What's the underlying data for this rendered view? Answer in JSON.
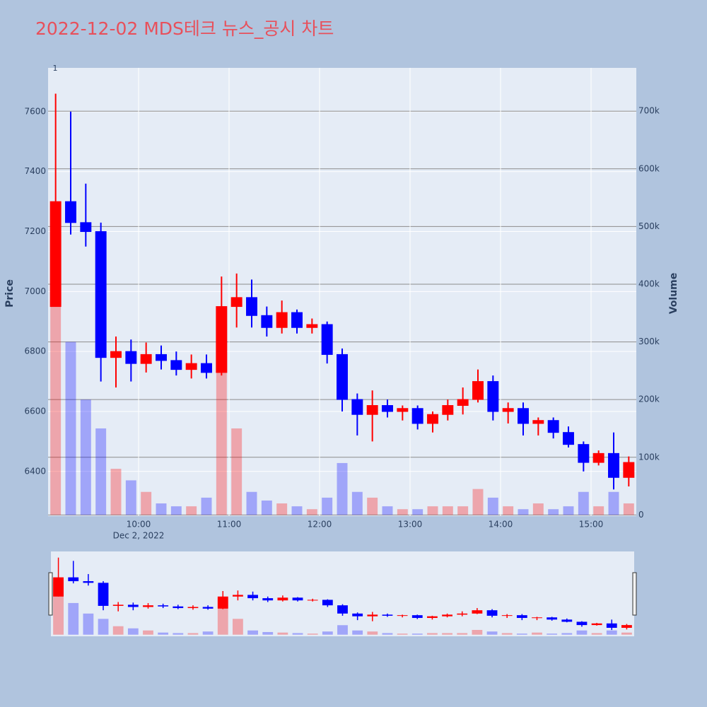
{
  "chart_data": {
    "type": "candlestick",
    "title": "2022-12-02 MDS테크 뉴스_공시 차트",
    "ylabel": "Price",
    "y2label": "Volume",
    "annotation": "1",
    "x_date_label": "Dec 2, 2022",
    "x": [
      "2022-12-02 09:05",
      "2022-12-02 09:15",
      "2022-12-02 09:25",
      "2022-12-02 09:35",
      "2022-12-02 09:45",
      "2022-12-02 09:55",
      "2022-12-02 10:05",
      "2022-12-02 10:15",
      "2022-12-02 10:25",
      "2022-12-02 10:35",
      "2022-12-02 10:45",
      "2022-12-02 10:55",
      "2022-12-02 11:05",
      "2022-12-02 11:15",
      "2022-12-02 11:25",
      "2022-12-02 11:35",
      "2022-12-02 11:45",
      "2022-12-02 11:55",
      "2022-12-02 12:05",
      "2022-12-02 12:15",
      "2022-12-02 12:25",
      "2022-12-02 12:35",
      "2022-12-02 12:45",
      "2022-12-02 12:55",
      "2022-12-02 13:05",
      "2022-12-02 13:15",
      "2022-12-02 13:25",
      "2022-12-02 13:35",
      "2022-12-02 13:45",
      "2022-12-02 13:55",
      "2022-12-02 14:05",
      "2022-12-02 14:15",
      "2022-12-02 14:25",
      "2022-12-02 14:35",
      "2022-12-02 14:45",
      "2022-12-02 14:55",
      "2022-12-02 15:05",
      "2022-12-02 15:15",
      "2022-12-02 15:25"
    ],
    "open": [
      6950,
      7300,
      7230,
      7200,
      6780,
      6800,
      6760,
      6790,
      6770,
      6740,
      6760,
      6730,
      6950,
      6980,
      6920,
      6880,
      6930,
      6880,
      6890,
      6790,
      6640,
      6590,
      6620,
      6600,
      6610,
      6560,
      6590,
      6620,
      6640,
      6700,
      6600,
      6610,
      6560,
      6570,
      6530,
      6490,
      6430,
      6460,
      6380
    ],
    "high": [
      7660,
      7600,
      7360,
      7230,
      6850,
      6840,
      6830,
      6820,
      6800,
      6790,
      6790,
      7050,
      7060,
      7040,
      6950,
      6970,
      6940,
      6910,
      6900,
      6810,
      6660,
      6670,
      6640,
      6620,
      6620,
      6600,
      6640,
      6680,
      6740,
      6720,
      6630,
      6630,
      6580,
      6580,
      6550,
      6500,
      6470,
      6530,
      6450
    ],
    "low": [
      6950,
      7190,
      7150,
      6700,
      6680,
      6700,
      6730,
      6740,
      6720,
      6710,
      6710,
      6720,
      6880,
      6880,
      6850,
      6860,
      6860,
      6860,
      6760,
      6600,
      6520,
      6500,
      6580,
      6570,
      6540,
      6530,
      6570,
      6590,
      6630,
      6570,
      6560,
      6520,
      6520,
      6510,
      6480,
      6400,
      6420,
      6340,
      6350
    ],
    "close": [
      7300,
      7230,
      7200,
      6780,
      6800,
      6760,
      6790,
      6770,
      6740,
      6760,
      6730,
      6950,
      6980,
      6920,
      6880,
      6930,
      6880,
      6890,
      6790,
      6640,
      6590,
      6620,
      6600,
      6610,
      6560,
      6590,
      6620,
      6640,
      6700,
      6600,
      6610,
      6560,
      6570,
      6530,
      6490,
      6430,
      6460,
      6380,
      6430
    ],
    "volume": [
      500000,
      300000,
      200000,
      150000,
      80000,
      60000,
      40000,
      20000,
      15000,
      15000,
      30000,
      350000,
      150000,
      40000,
      25000,
      20000,
      15000,
      10000,
      30000,
      90000,
      40000,
      30000,
      15000,
      10000,
      10000,
      15000,
      15000,
      15000,
      45000,
      30000,
      15000,
      10000,
      20000,
      10000,
      15000,
      40000,
      15000,
      40000,
      20000
    ],
    "increasing_color": "#ff0000",
    "decreasing_color": "#0000ff",
    "xlim": [
      "2022-12-02 09:00",
      "2022-12-02 15:30"
    ],
    "xticks": [
      {
        "value": "2022-12-02 10:00",
        "label": "10:00"
      },
      {
        "value": "2022-12-02 11:00",
        "label": "11:00"
      },
      {
        "value": "2022-12-02 12:00",
        "label": "12:00"
      },
      {
        "value": "2022-12-02 13:00",
        "label": "13:00"
      },
      {
        "value": "2022-12-02 14:00",
        "label": "14:00"
      },
      {
        "value": "2022-12-02 15:00",
        "label": "15:00"
      }
    ],
    "ylim": [
      6251,
      7746
    ],
    "yticks": [
      6400,
      6600,
      6800,
      7000,
      7200,
      7400,
      7600
    ],
    "y2lim": [
      -2000,
      775000
    ],
    "y2ticks": [
      0,
      {
        "value": 100000,
        "label": "100k"
      },
      {
        "value": 200000,
        "label": "200k"
      },
      {
        "value": 300000,
        "label": "300k"
      },
      {
        "value": 400000,
        "label": "400k"
      },
      {
        "value": 500000,
        "label": "500k"
      },
      {
        "value": 600000,
        "label": "600k"
      },
      {
        "value": 700000,
        "label": "700k"
      }
    ],
    "rangeslider": true
  }
}
